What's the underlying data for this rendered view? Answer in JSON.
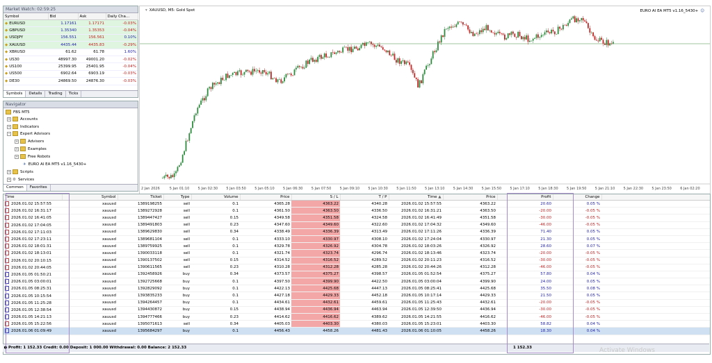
{
  "market_watch": {
    "title": "Market Watch: 02:59:25",
    "headers": [
      "Symbol",
      "Bid",
      "Ask",
      "Daily Cha..."
    ],
    "rows": [
      {
        "symbol": "EURUSD",
        "bid": "1.17161",
        "ask": "1.17171",
        "change": "-0.03%"
      },
      {
        "symbol": "GBPUSD",
        "bid": "1.35340",
        "ask": "1.35353",
        "change": "-0.04%"
      },
      {
        "symbol": "USDJPY",
        "bid": "156.551",
        "ask": "156.561",
        "change": "0.10%"
      },
      {
        "symbol": "XAUUSD",
        "bid": "4435.44",
        "ask": "4435.83",
        "change": "-0.29%"
      },
      {
        "symbol": "XBRUSD",
        "bid": "61.62",
        "ask": "61.78",
        "change": "1.60%"
      },
      {
        "symbol": "US30",
        "bid": "48997.30",
        "ask": "49001.20",
        "change": "-0.02%"
      },
      {
        "symbol": "US100",
        "bid": "25399.95",
        "ask": "25401.95",
        "change": "-0.04%"
      },
      {
        "symbol": "US500",
        "bid": "6902.64",
        "ask": "6903.19",
        "change": "-0.03%"
      },
      {
        "symbol": "DE30",
        "bid": "24869.50",
        "ask": "24876.30",
        "change": "-0.03%"
      }
    ],
    "tabs": [
      "Symbols",
      "Details",
      "Trading",
      "Ticks"
    ]
  },
  "navigator": {
    "title": "Navigator",
    "items": [
      "FBS MT5",
      "Accounts",
      "Indicators",
      "Expert Advisors",
      "Advisors",
      "Examples",
      "Free Robots",
      "EURO AI EA MT5 v1.16_5430+",
      "Scripts",
      "Services"
    ],
    "tabs": [
      "Common",
      "Favorites"
    ]
  },
  "chart": {
    "title": "XAUUSD, M5:  Gold Spot",
    "ea_label": "EURO AI EA MT5 v1.16_5430+",
    "time_labels": [
      "2 Jan 2026",
      "5 Jan 01:10",
      "5 Jan 02:30",
      "5 Jan 03:50",
      "5 Jan 05:10",
      "5 Jan 06:30",
      "5 Jan 07:50",
      "5 Jan 09:10",
      "5 Jan 10:30",
      "5 Jan 11:50",
      "5 Jan 13:10",
      "5 Jan 14:30",
      "5 Jan 15:50",
      "5 Jan 17:10",
      "5 Jan 18:30",
      "5 Jan 19:50",
      "5 Jan 21:10",
      "5 Jan 22:30",
      "5 Jan 23:50",
      "6 Jan 02:20"
    ]
  },
  "trades": {
    "headers": [
      "Time",
      "Symbol",
      "Ticket",
      "Type",
      "Volume",
      "Price",
      "S / L",
      "T / P",
      "Time",
      "Price",
      "Profit",
      "Change"
    ],
    "rows": [
      {
        "time": "2026.01.02 15:57:55",
        "symbol": "xauusd",
        "ticket": "1389198255",
        "type": "sell",
        "volume": "0.1",
        "price": "4365.28",
        "sl": "4363.22",
        "tp": "4340.28",
        "ctime": "2026.01.02 15:57:55",
        "cprice": "4363.22",
        "profit": "20.60",
        "change": "0.05 %"
      },
      {
        "time": "2026.01.02 16:31:17",
        "symbol": "xauusd",
        "ticket": "1389272928",
        "type": "sell",
        "volume": "0.1",
        "price": "4361.50",
        "sl": "4363.50",
        "tp": "4336.50",
        "ctime": "2026.01.02 16:31:21",
        "cprice": "4363.50",
        "profit": "-20.00",
        "change": "-0.05 %"
      },
      {
        "time": "2026.01.02 16:41:05",
        "symbol": "xauusd",
        "ticket": "1389447427",
        "type": "sell",
        "volume": "0.15",
        "price": "4349.58",
        "sl": "4351.58",
        "tp": "4324.58",
        "ctime": "2026.01.02 16:41:49",
        "cprice": "4351.58",
        "profit": "-30.00",
        "change": "-0.05 %"
      },
      {
        "time": "2026.01.02 17:04:05",
        "symbol": "xauusd",
        "ticket": "1389491803",
        "type": "sell",
        "volume": "0.23",
        "price": "4347.60",
        "sl": "4349.60",
        "tp": "4322.60",
        "ctime": "2026.01.02 17:04:32",
        "cprice": "4349.60",
        "profit": "-46.00",
        "change": "-0.05 %"
      },
      {
        "time": "2026.01.02 17:11:03",
        "symbol": "xauusd",
        "ticket": "1389629830",
        "type": "sell",
        "volume": "0.34",
        "price": "4338.49",
        "sl": "4336.39",
        "tp": "4313.49",
        "ctime": "2026.01.02 17:11:26",
        "cprice": "4336.39",
        "profit": "71.40",
        "change": "0.05 %"
      },
      {
        "time": "2026.01.02 17:23:11",
        "symbol": "xauusd",
        "ticket": "1389681104",
        "type": "sell",
        "volume": "0.1",
        "price": "4333.10",
        "sl": "4330.97",
        "tp": "4308.10",
        "ctime": "2026.01.02 17:24:04",
        "cprice": "4330.97",
        "profit": "21.30",
        "change": "0.05 %"
      },
      {
        "time": "2026.01.02 18:01:31",
        "symbol": "xauusd",
        "ticket": "1389759925",
        "type": "sell",
        "volume": "0.1",
        "price": "4329.78",
        "sl": "4326.92",
        "tp": "4304.78",
        "ctime": "2026.01.02 18:03:26",
        "cprice": "4326.92",
        "profit": "28.60",
        "change": "0.07 %"
      },
      {
        "time": "2026.01.02 18:13:01",
        "symbol": "xauusd",
        "ticket": "1390033118",
        "type": "sell",
        "volume": "0.1",
        "price": "4321.74",
        "sl": "4323.74",
        "tp": "4296.74",
        "ctime": "2026.01.02 18:13:46",
        "cprice": "4323.74",
        "profit": "-20.00",
        "change": "-0.05 %"
      },
      {
        "time": "2026.01.02 20:10:15",
        "symbol": "xauusd",
        "ticket": "1390137502",
        "type": "sell",
        "volume": "0.15",
        "price": "4314.52",
        "sl": "4316.52",
        "tp": "4289.52",
        "ctime": "2026.01.02 20:11:23",
        "cprice": "4316.52",
        "profit": "-30.00",
        "change": "-0.05 %"
      },
      {
        "time": "2026.01.02 20:44:05",
        "symbol": "xauusd",
        "ticket": "1390611565",
        "type": "sell",
        "volume": "0.23",
        "price": "4310.28",
        "sl": "4312.28",
        "tp": "4285.28",
        "ctime": "2026.01.02 20:44:26",
        "cprice": "4312.28",
        "profit": "-46.00",
        "change": "-0.05 %"
      },
      {
        "time": "2026.01.05 01:50:21",
        "symbol": "xauusd",
        "ticket": "1392458926",
        "type": "buy",
        "volume": "0.34",
        "price": "4373.57",
        "sl": "4375.27",
        "tp": "4398.57",
        "ctime": "2026.01.05 01:52:54",
        "cprice": "4375.27",
        "profit": "57.80",
        "change": "0.04 %"
      },
      {
        "time": "2026.01.05 03:00:01",
        "symbol": "xauusd",
        "ticket": "1392725668",
        "type": "buy",
        "volume": "0.1",
        "price": "4397.50",
        "sl": "4399.90",
        "tp": "4422.50",
        "ctime": "2026.01.05 03:00:04",
        "cprice": "4399.90",
        "profit": "24.00",
        "change": "0.05 %"
      },
      {
        "time": "2026.01.05 08:25:31",
        "symbol": "xauusd",
        "ticket": "1392829092",
        "type": "buy",
        "volume": "0.1",
        "price": "4422.13",
        "sl": "4425.68",
        "tp": "4447.13",
        "ctime": "2026.01.05 08:25:41",
        "cprice": "4425.68",
        "profit": "35.50",
        "change": "0.08 %"
      },
      {
        "time": "2026.01.05 10:15:54",
        "symbol": "xauusd",
        "ticket": "1393835233",
        "type": "buy",
        "volume": "0.1",
        "price": "4427.18",
        "sl": "4429.33",
        "tp": "4452.18",
        "ctime": "2026.01.05 10:17:14",
        "cprice": "4429.33",
        "profit": "21.50",
        "change": "0.05 %"
      },
      {
        "time": "2026.01.05 11:25:28",
        "symbol": "xauusd",
        "ticket": "1394264457",
        "type": "buy",
        "volume": "0.1",
        "price": "4434.61",
        "sl": "4432.61",
        "tp": "4459.61",
        "ctime": "2026.01.05 11:25:43",
        "cprice": "4432.61",
        "profit": "-20.00",
        "change": "-0.05 %"
      },
      {
        "time": "2026.01.05 12:38:54",
        "symbol": "xauusd",
        "ticket": "1394430872",
        "type": "buy",
        "volume": "0.15",
        "price": "4438.94",
        "sl": "4436.94",
        "tp": "4463.94",
        "ctime": "2026.01.05 12:39:50",
        "cprice": "4436.94",
        "profit": "-30.00",
        "change": "-0.05 %"
      },
      {
        "time": "2026.01.05 14:21:13",
        "symbol": "xauusd",
        "ticket": "1394777466",
        "type": "buy",
        "volume": "0.23",
        "price": "4414.62",
        "sl": "4416.62",
        "tp": "4389.62",
        "ctime": "2026.01.05 14:21:55",
        "cprice": "4416.62",
        "profit": "-46.00",
        "change": "-0.05 %"
      },
      {
        "time": "2026.01.05 15:22:56",
        "symbol": "xauusd",
        "ticket": "1395071613",
        "type": "sell",
        "volume": "0.34",
        "price": "4405.03",
        "sl": "4403.30",
        "tp": "4380.03",
        "ctime": "2026.01.05 15:23:01",
        "cprice": "4403.30",
        "profit": "58.82",
        "change": "0.04 %"
      },
      {
        "time": "2026.01.06 01:09:49",
        "symbol": "xauusd",
        "ticket": "1395684297",
        "type": "buy",
        "volume": "0.1",
        "price": "4456.43",
        "sl": "4458.26",
        "tp": "4481.43",
        "ctime": "2026.01.06 01:10:05",
        "cprice": "4458.26",
        "profit": "18.30",
        "change": "0.04 %"
      }
    ],
    "summary": "Profit: 1 152.33  Credit: 0.00  Deposit: 1 000.00  Withdrawal: 0.00  Balance: 2 152.33",
    "total_profit": "1 152.33",
    "watermark": "Activate Windows"
  }
}
